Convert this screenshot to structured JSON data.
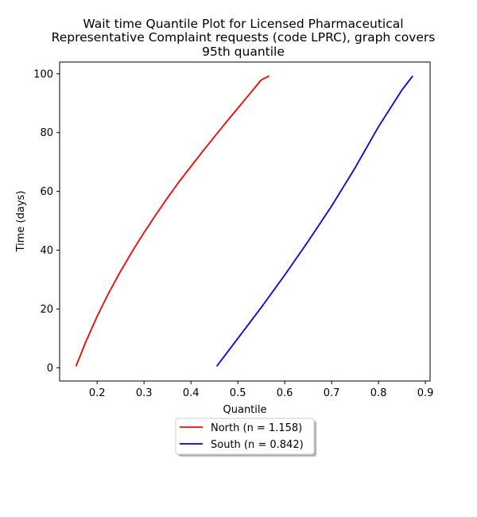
{
  "chart_data": {
    "type": "line",
    "title_lines": [
      "Wait time Quantile Plot for Licensed Pharmaceutical",
      "Representative Complaint  requests (code LPRC), graph covers",
      "95th quantile"
    ],
    "xlabel": "Quantile",
    "ylabel": "Time (days)",
    "xlim": [
      0.12,
      0.91
    ],
    "ylim": [
      -4.5,
      104
    ],
    "x_ticks": [
      0.2,
      0.3,
      0.4,
      0.5,
      0.6,
      0.7,
      0.8,
      0.9
    ],
    "x_tick_labels": [
      "0.2",
      "0.3",
      "0.4",
      "0.5",
      "0.6",
      "0.7",
      "0.8",
      "0.9"
    ],
    "y_ticks": [
      0,
      20,
      40,
      60,
      80,
      100
    ],
    "y_tick_labels": [
      "0",
      "20",
      "40",
      "60",
      "80",
      "100"
    ],
    "grid": false,
    "legend_position": "below-center",
    "series": [
      {
        "name": "North (n = 1.158)",
        "color": "#ff0000",
        "x": [
          0.155,
          0.175,
          0.2,
          0.225,
          0.25,
          0.275,
          0.3,
          0.325,
          0.35,
          0.375,
          0.4,
          0.425,
          0.45,
          0.475,
          0.5,
          0.525,
          0.55,
          0.567
        ],
        "y": [
          0.5,
          8.5,
          17.5,
          25.5,
          32.8,
          39.6,
          46,
          52,
          57.8,
          63.3,
          68.5,
          73.6,
          78.6,
          83.5,
          88.3,
          93.1,
          97.9,
          99.3
        ]
      },
      {
        "name": "South (n = 0.842)",
        "color": "#0000ff",
        "x": [
          0.455,
          0.5,
          0.55,
          0.6,
          0.65,
          0.7,
          0.75,
          0.8,
          0.85,
          0.873
        ],
        "y": [
          0.5,
          10,
          20.5,
          31.5,
          43,
          55,
          68,
          82,
          94.5,
          99.3
        ]
      }
    ]
  }
}
